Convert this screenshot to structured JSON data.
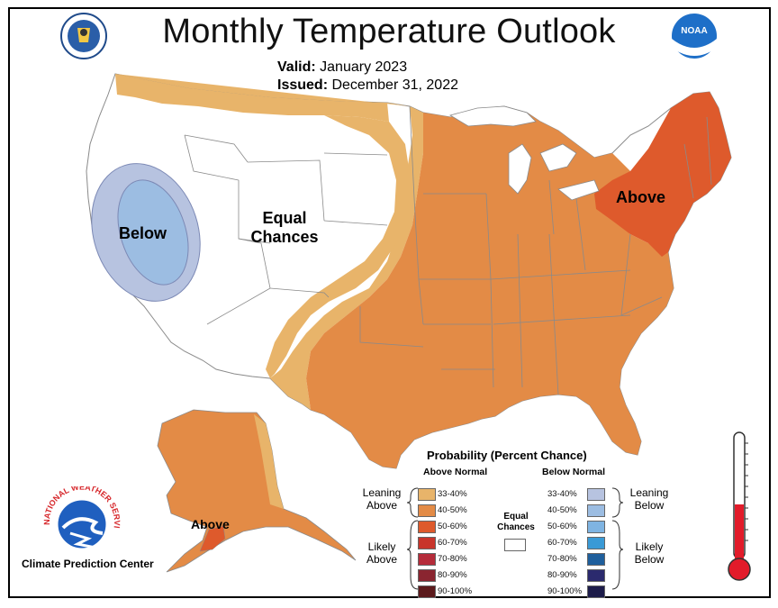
{
  "header": {
    "title": "Monthly Temperature Outlook",
    "valid_label": "Valid:",
    "valid_value": "January 2023",
    "issued_label": "Issued:",
    "issued_value": "December 31, 2022"
  },
  "map_labels": {
    "below": "Below",
    "equal_line1": "Equal",
    "equal_line2": "Chances",
    "above_east": "Above",
    "above_alaska": "Above"
  },
  "legend": {
    "title": "Probability (Percent Chance)",
    "above_header": "Above Normal",
    "below_header": "Below Normal",
    "equal_line1": "Equal",
    "equal_line2": "Chances",
    "leaning_above": [
      "Leaning",
      "Above"
    ],
    "likely_above": [
      "Likely",
      "Above"
    ],
    "leaning_below": [
      "Leaning",
      "Below"
    ],
    "likely_below": [
      "Likely",
      "Below"
    ],
    "above_bins": [
      {
        "label": "33-40%",
        "color": "#e8b46a"
      },
      {
        "label": "40-50%",
        "color": "#e38b46"
      },
      {
        "label": "50-60%",
        "color": "#de5a2c"
      },
      {
        "label": "60-70%",
        "color": "#c8352b"
      },
      {
        "label": "70-80%",
        "color": "#b52c3a"
      },
      {
        "label": "80-90%",
        "color": "#8a2530"
      },
      {
        "label": "90-100%",
        "color": "#5c1a1c"
      }
    ],
    "below_bins": [
      {
        "label": "33-40%",
        "color": "#b7c3e0"
      },
      {
        "label": "40-50%",
        "color": "#9cbde2"
      },
      {
        "label": "50-60%",
        "color": "#7fb4e2"
      },
      {
        "label": "60-70%",
        "color": "#3a9ad6"
      },
      {
        "label": "70-80%",
        "color": "#1f5f9c"
      },
      {
        "label": "80-90%",
        "color": "#2b2a6e"
      },
      {
        "label": "90-100%",
        "color": "#1d1c4a"
      }
    ]
  },
  "footer": {
    "agency_name": "Climate Prediction Center",
    "nws_ring_text": "NATIONAL WEATHER SERVICE",
    "noaa_text": "NOAA"
  },
  "colors": {
    "leaning_above": "#e8b46a",
    "above_40_50": "#e38b46",
    "above_50_60": "#de5a2c",
    "below_33_40": "#b7c3e0",
    "below_40_50": "#9cbde2",
    "state_lines": "#8a8a8a",
    "thermometer_red": "#e21b2a"
  }
}
